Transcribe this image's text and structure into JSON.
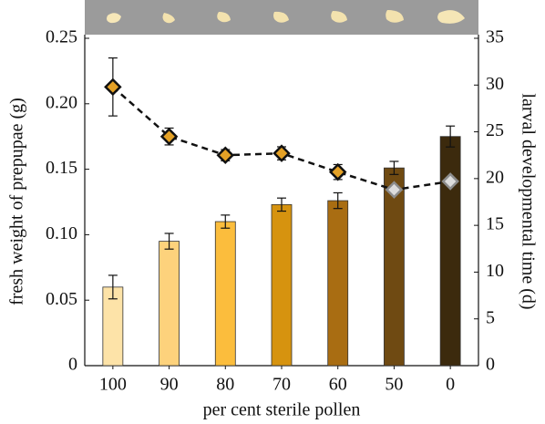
{
  "chart_data": {
    "type": "bar",
    "x_label": "per cent sterile pollen",
    "y_label": "fresh weight of prepupae (g)",
    "y2_label": "larval developmental time (d)",
    "categories": [
      "100",
      "90",
      "80",
      "70",
      "60",
      "50",
      "0"
    ],
    "ylim": [
      0,
      0.25
    ],
    "yticks": [
      0,
      0.05,
      {
        "value": 0.1,
        "label": "0.10"
      },
      0.15,
      {
        "value": 0.2,
        "label": "0.20"
      },
      0.25
    ],
    "y2lim": [
      0,
      35
    ],
    "y2ticks": [
      0,
      5,
      10,
      15,
      20,
      25,
      30,
      35
    ],
    "series": [
      {
        "type": "bar",
        "colors": [
          "#fde3a8",
          "#fdd27c",
          "#fbbd3d",
          "#d6930f",
          "#a96d12",
          "#6f4a12",
          "#3c2a0d"
        ],
        "values": [
          0.06,
          0.095,
          0.11,
          0.123,
          0.126,
          0.151,
          0.175
        ],
        "errors": [
          0.009,
          0.006,
          0.005,
          0.005,
          0.006,
          0.005,
          0.008
        ]
      },
      {
        "type": "line",
        "axis": "y2",
        "color": "#111111",
        "marker_colors": [
          "#e4a126",
          "#e4a126",
          "#e4a126",
          "#e4a126",
          "#e4a126",
          "#dcdcdc",
          "#dcdcdc"
        ],
        "marker_strokes": [
          "#111111",
          "#111111",
          "#111111",
          "#111111",
          "#111111",
          "#8c8c8c",
          "#8c8c8c"
        ],
        "values": [
          29.8,
          24.5,
          22.5,
          22.7,
          20.7,
          18.8,
          19.7
        ],
        "errors": [
          3.1,
          0.9,
          0.6,
          0.7,
          0.8,
          null,
          null
        ]
      }
    ]
  }
}
